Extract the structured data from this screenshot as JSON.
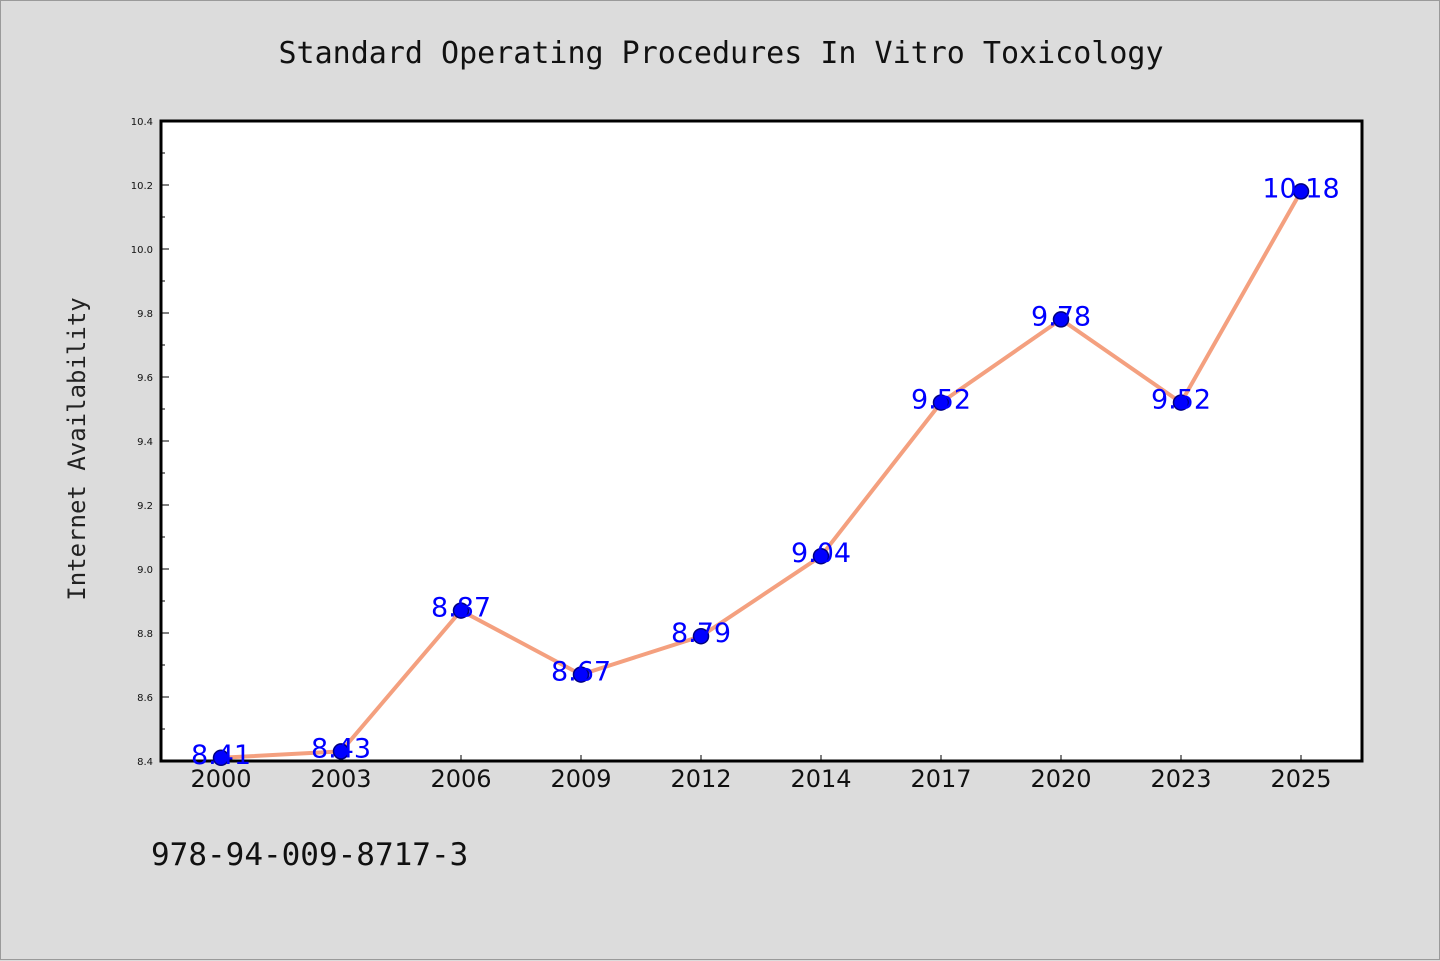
{
  "chart_data": {
    "type": "line",
    "title": "Standard Operating Procedures In Vitro Toxicology",
    "xlabel": "",
    "ylabel": "Internet Availability",
    "categories": [
      "2000",
      "2003",
      "2006",
      "2009",
      "2012",
      "2014",
      "2017",
      "2020",
      "2023",
      "2025"
    ],
    "series": [
      {
        "values": [
          8.41,
          8.43,
          8.87,
          8.67,
          8.79,
          9.04,
          9.52,
          9.78,
          9.52,
          10.18
        ]
      }
    ],
    "data_labels": [
      "8.41",
      "8.43",
      "8.87",
      "8.67",
      "8.79",
      "9.04",
      "9.52",
      "9.78",
      "9.52",
      "10.18"
    ],
    "ylim": [
      8.4,
      10.4
    ],
    "yticks": [
      "8.4",
      "8.6",
      "8.8",
      "9.0",
      "9.2",
      "9.4",
      "9.6",
      "9.8",
      "10.0",
      "10.2",
      "10.4"
    ],
    "grid": false,
    "legend": "none",
    "colors": {
      "line": "#f4a07f",
      "marker": "#0000ff",
      "marker_edge": "#000080",
      "data_label": "#0000ff",
      "background": "#dcdcdc",
      "plot_area": "#ffffff"
    }
  },
  "footnote": "978-94-009-8717-3"
}
